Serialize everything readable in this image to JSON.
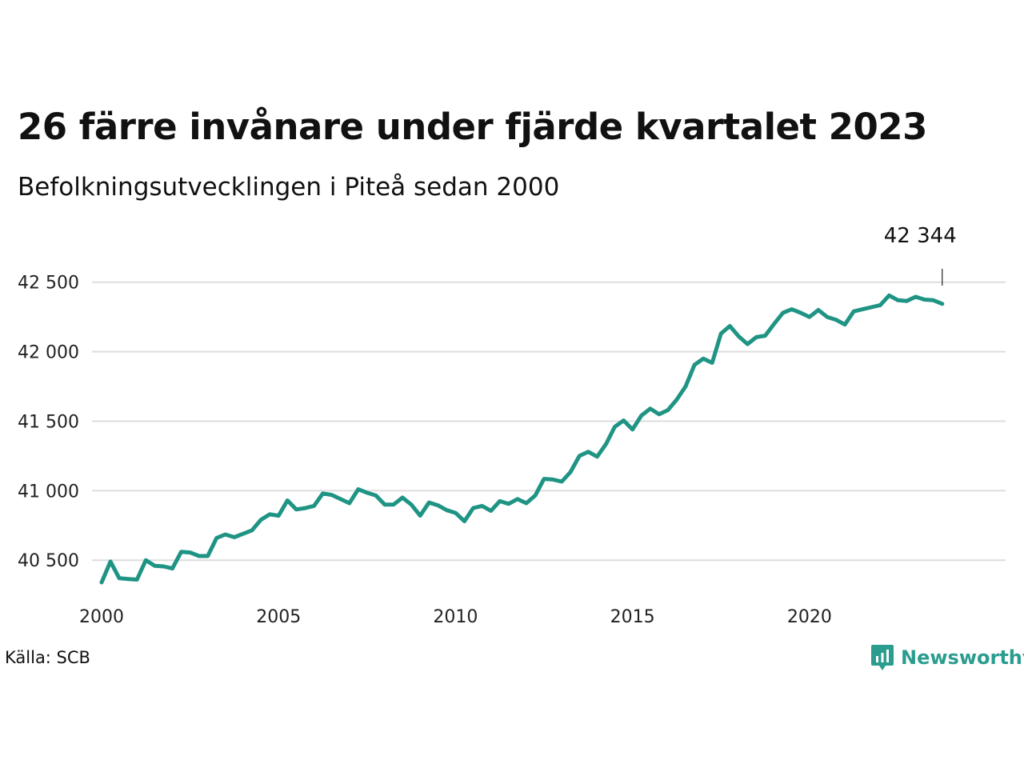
{
  "header": {
    "title": "26 färre invånare under fjärde kvartalet 2023",
    "subtitle": "Befolkningsutvecklingen i Piteå sedan 2000"
  },
  "footer": {
    "source": "Källa: SCB",
    "brand": "Newsworthy",
    "brand_icon": "bar-chart-speech-bubble-icon"
  },
  "colors": {
    "line": "#1f9484",
    "grid": "#dddddd",
    "brand": "#2a9d8f"
  },
  "chart_data": {
    "type": "line",
    "title": "26 färre invånare under fjärde kvartalet 2023",
    "subtitle": "Befolkningsutvecklingen i Piteå sedan 2000",
    "xlabel": "",
    "ylabel": "",
    "xlim": [
      2000,
      2024.75
    ],
    "ylim": [
      40340,
      42700
    ],
    "x_ticks": [
      2000,
      2005,
      2010,
      2015,
      2020
    ],
    "x_tick_labels": [
      "2000",
      "2005",
      "2010",
      "2015",
      "2020"
    ],
    "y_ticks": [
      40500,
      41000,
      41500,
      42000,
      42500
    ],
    "y_tick_labels": [
      "40 500",
      "41 000",
      "41 500",
      "42 000",
      "42 500"
    ],
    "grid": true,
    "end_label": "42 344",
    "series": [
      {
        "x": [
          2000,
          2000.25,
          2000.5,
          2000.75,
          2001,
          2001.25,
          2001.5,
          2001.75,
          2002,
          2002.25,
          2002.5,
          2002.75,
          2003,
          2003.25,
          2003.5,
          2003.75,
          2004,
          2004.25,
          2004.5,
          2004.75,
          2005,
          2005.25,
          2005.5,
          2005.75,
          2006,
          2006.25,
          2006.5,
          2006.75,
          2007,
          2007.25,
          2007.5,
          2007.75,
          2008,
          2008.25,
          2008.5,
          2008.75,
          2009,
          2009.25,
          2009.5,
          2009.75,
          2010,
          2010.25,
          2010.5,
          2010.75,
          2011,
          2011.25,
          2011.5,
          2011.75,
          2012,
          2012.25,
          2012.5,
          2012.75,
          2013,
          2013.25,
          2013.5,
          2013.75,
          2014,
          2014.25,
          2014.5,
          2014.75,
          2015,
          2015.25,
          2015.5,
          2015.75,
          2016,
          2016.25,
          2016.5,
          2016.75,
          2017,
          2017.25,
          2017.5,
          2017.75,
          2018,
          2018.25,
          2018.5,
          2018.75,
          2019,
          2019.25,
          2019.5,
          2019.75,
          2020,
          2020.25,
          2020.5,
          2020.75,
          2021,
          2021.25,
          2021.5,
          2021.75,
          2022,
          2022.25,
          2022.5,
          2022.75,
          2023,
          2023.25,
          2023.5,
          2023.75
        ],
        "values": [
          40340,
          40490,
          40370,
          40365,
          40360,
          40500,
          40460,
          40455,
          40440,
          40560,
          40555,
          40530,
          40530,
          40660,
          40685,
          40665,
          40690,
          40715,
          40790,
          40830,
          40820,
          40930,
          40865,
          40875,
          40890,
          40980,
          40970,
          40940,
          40910,
          41010,
          40985,
          40965,
          40900,
          40900,
          40950,
          40900,
          40820,
          40915,
          40895,
          40860,
          40840,
          40780,
          40875,
          40890,
          40855,
          40925,
          40905,
          40940,
          40910,
          40965,
          41085,
          41080,
          41065,
          41135,
          41250,
          41280,
          41245,
          41335,
          41460,
          41505,
          41440,
          41540,
          41590,
          41550,
          41580,
          41655,
          41750,
          41905,
          41950,
          41920,
          42130,
          42185,
          42110,
          42055,
          42105,
          42115,
          42200,
          42280,
          42305,
          42280,
          42250,
          42300,
          42250,
          42230,
          42195,
          42290,
          42305,
          42320,
          42335,
          42405,
          42370,
          42365,
          42395,
          42375,
          42370,
          42344
        ]
      }
    ]
  }
}
